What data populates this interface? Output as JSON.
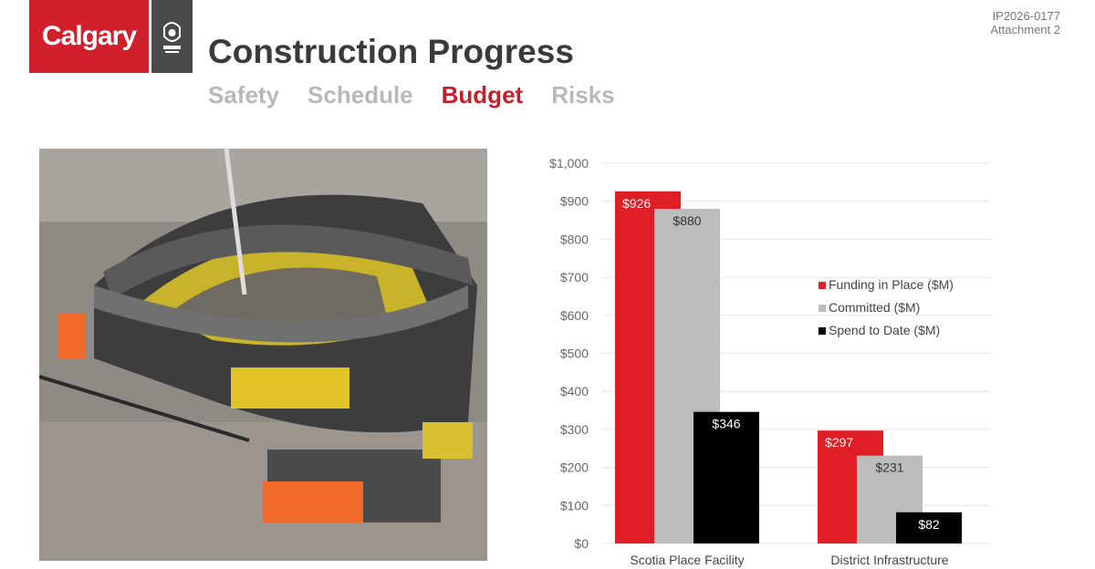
{
  "header": {
    "logo_text": "Calgary",
    "title": "Construction Progress",
    "tabs": [
      {
        "label": "Safety",
        "active": false
      },
      {
        "label": "Schedule",
        "active": false
      },
      {
        "label": "Budget",
        "active": true
      },
      {
        "label": "Risks",
        "active": false
      }
    ],
    "doc_ref_line1": "IP2026-0177",
    "doc_ref_line2": "Attachment 2"
  },
  "colors": {
    "brand_red": "#d11f2c",
    "tab_active": "#c4202c",
    "tab_inactive": "#b8b8b8",
    "committed_gray": "#bcbcbc",
    "spend_black": "#000000"
  },
  "chart_data": {
    "type": "bar",
    "categories": [
      "Scotia Place Facility",
      "District Infrastructure"
    ],
    "series": [
      {
        "name": "Funding in Place ($M)",
        "values": [
          926,
          297
        ],
        "labels": [
          "$926",
          "$297"
        ],
        "color": "#e01e26"
      },
      {
        "name": "Committed ($M)",
        "values": [
          880,
          231
        ],
        "labels": [
          "$880",
          "$231"
        ],
        "color": "#bcbcbc"
      },
      {
        "name": "Spend to Date ($M)",
        "values": [
          346,
          82
        ],
        "labels": [
          "$346",
          "$82"
        ],
        "color": "#000000"
      }
    ],
    "ylim": [
      0,
      1000
    ],
    "yticks": [
      "$0",
      "$100",
      "$200",
      "$300",
      "$400",
      "$500",
      "$600",
      "$700",
      "$800",
      "$900",
      "$1,000"
    ],
    "grid": true,
    "legend_position": "right"
  }
}
